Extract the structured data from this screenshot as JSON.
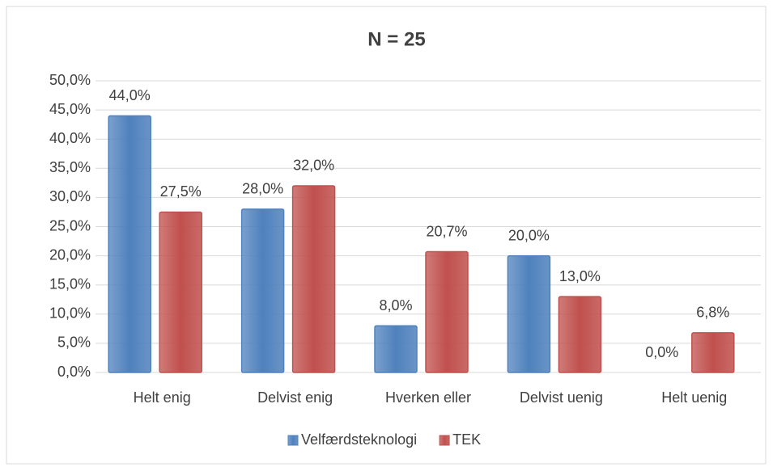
{
  "chart_data": {
    "type": "bar",
    "title": "N = 25",
    "categories": [
      "Helt enig",
      "Delvist enig",
      "Hverken eller",
      "Delvist uenig",
      "Helt uenig"
    ],
    "series": [
      {
        "name": "Velfærdsteknologi",
        "color": "#4f81bd",
        "values": [
          44.0,
          28.0,
          8.0,
          20.0,
          0.0
        ],
        "value_labels": [
          "44,0%",
          "28,0%",
          "8,0%",
          "20,0%",
          "0,0%"
        ]
      },
      {
        "name": "TEK",
        "color": "#c0504d",
        "values": [
          27.5,
          32.0,
          20.7,
          13.0,
          6.8
        ],
        "value_labels": [
          "27,5%",
          "32,0%",
          "20,7%",
          "13,0%",
          "6,8%"
        ]
      }
    ],
    "ylim": [
      0,
      50
    ],
    "yticks": [
      {
        "value": 0,
        "label": "0,0%"
      },
      {
        "value": 5,
        "label": "5,0%"
      },
      {
        "value": 10,
        "label": "10,0%"
      },
      {
        "value": 15,
        "label": "15,0%"
      },
      {
        "value": 20,
        "label": "20,0%"
      },
      {
        "value": 25,
        "label": "25,0%"
      },
      {
        "value": 30,
        "label": "30,0%"
      },
      {
        "value": 35,
        "label": "35,0%"
      },
      {
        "value": 40,
        "label": "40,0%"
      },
      {
        "value": 45,
        "label": "45,0%"
      },
      {
        "value": 50,
        "label": "50,0%"
      }
    ],
    "grid": true,
    "legend": "bottom"
  }
}
